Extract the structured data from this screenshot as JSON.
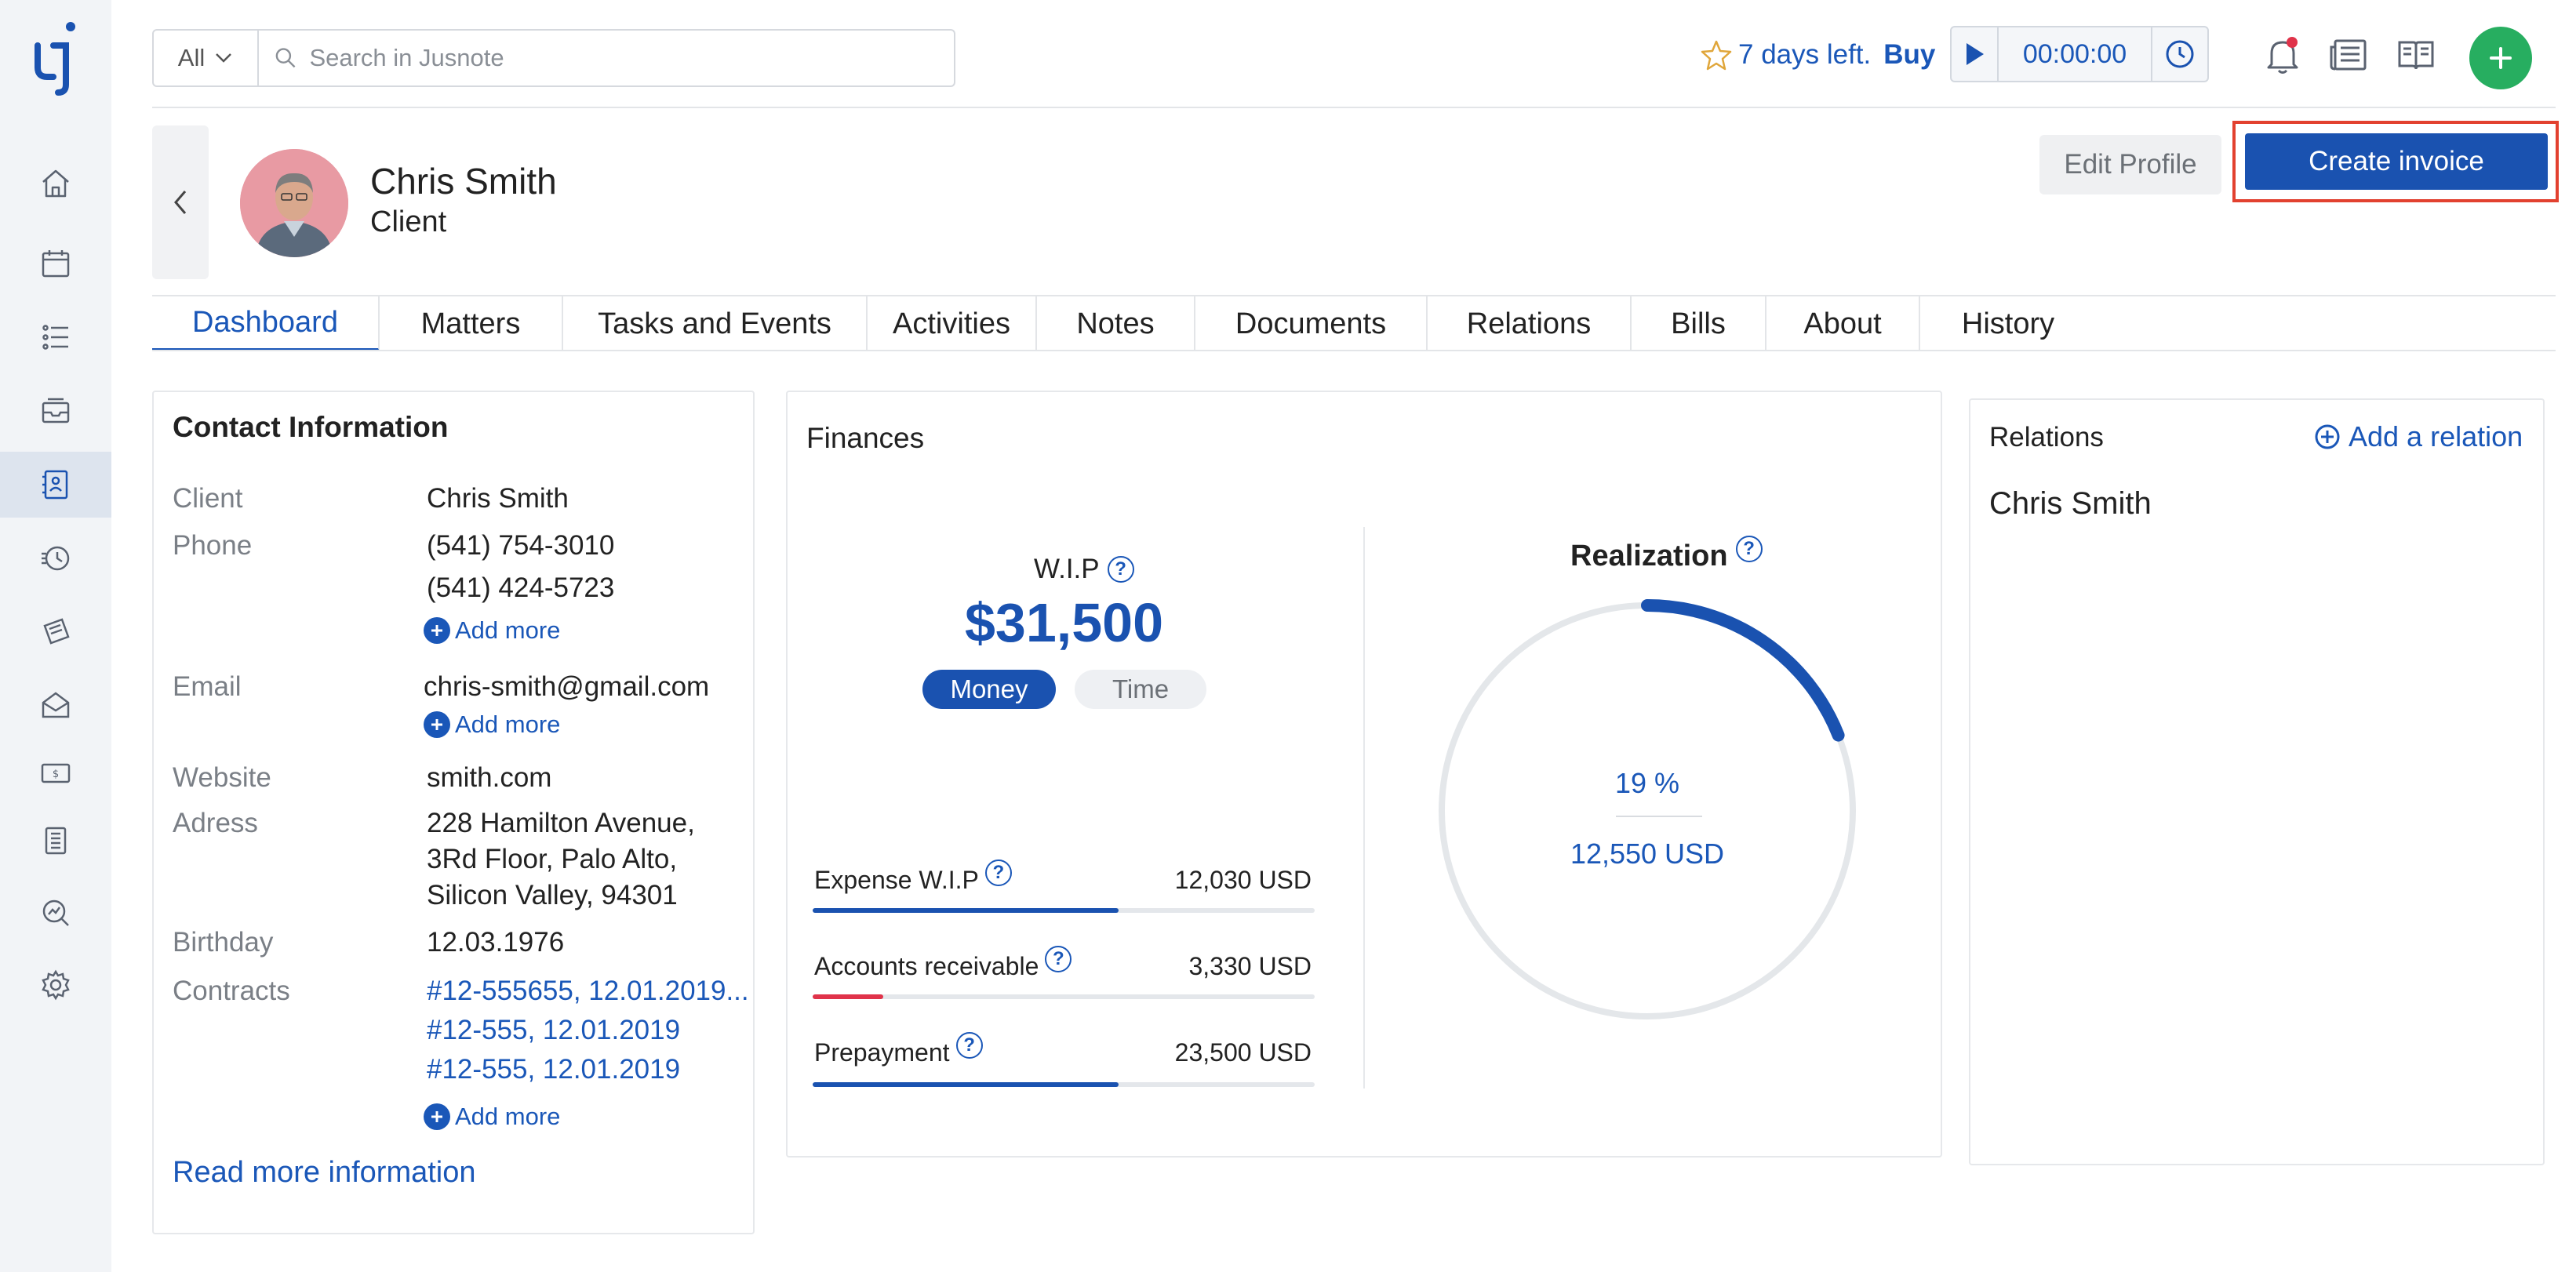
{
  "app": {
    "brand_color": "#1a52b0",
    "accent_green": "#27ae60",
    "highlight_red": "#e2412f"
  },
  "sidebar": {
    "items": [
      {
        "icon": "home-icon"
      },
      {
        "icon": "calendar-icon"
      },
      {
        "icon": "tasks-list-icon"
      },
      {
        "icon": "inbox-icon"
      },
      {
        "icon": "contacts-icon",
        "active": true
      },
      {
        "icon": "time-history-icon"
      },
      {
        "icon": "bills-icon"
      },
      {
        "icon": "mail-icon"
      },
      {
        "icon": "money-icon"
      },
      {
        "icon": "building-icon"
      },
      {
        "icon": "reports-icon"
      },
      {
        "icon": "settings-icon"
      }
    ]
  },
  "search": {
    "scope": "All",
    "placeholder": "Search in Jusnote",
    "value": ""
  },
  "trial": {
    "text": "7 days left.",
    "buy": "Buy"
  },
  "timer": {
    "time": "00:00:00"
  },
  "profile": {
    "name": "Chris Smith",
    "role": "Client",
    "edit_label": "Edit Profile",
    "create_invoice_label": "Create invoice"
  },
  "tabs": [
    {
      "label": "Dashboard",
      "active": true
    },
    {
      "label": "Matters"
    },
    {
      "label": "Tasks and Events"
    },
    {
      "label": "Activities"
    },
    {
      "label": "Notes"
    },
    {
      "label": "Documents"
    },
    {
      "label": "Relations"
    },
    {
      "label": "Bills"
    },
    {
      "label": "About"
    },
    {
      "label": "History"
    }
  ],
  "contact": {
    "title": "Contact Information",
    "client_label": "Client",
    "client_value": "Chris Smith",
    "phone_label": "Phone",
    "phones": [
      "(541) 754-3010",
      "(541) 424-5723"
    ],
    "email_label": "Email",
    "email": "chris-smith@gmail.com",
    "website_label": "Website",
    "website": "smith.com",
    "address_label": "Adress",
    "address_lines": [
      "228 Hamilton Avenue,",
      "3Rd Floor, Palo Alto,",
      "Silicon Valley, 94301"
    ],
    "birthday_label": "Birthday",
    "birthday": "12.03.1976",
    "contracts_label": "Contracts",
    "contracts": [
      "#12-555655, 12.01.2019...",
      "#12-555, 12.01.2019",
      "#12-555, 12.01.2019"
    ],
    "add_more": "Add more",
    "read_more": "Read more information"
  },
  "finances": {
    "title": "Finances",
    "wip_label": "W.I.P",
    "wip_value": "$31,500",
    "toggle_money": "Money",
    "toggle_time": "Time",
    "metrics": [
      {
        "label": "Expense W.I.P",
        "value": "12,030 USD",
        "fill": 0.61,
        "color": "#1a52b0"
      },
      {
        "label": "Accounts receivable",
        "value": "3,330 USD",
        "fill": 0.14,
        "color": "#e0334a"
      },
      {
        "label": "Prepayment",
        "value": "23,500 USD",
        "fill": 0.61,
        "color": "#1a52b0"
      }
    ],
    "realization_label": "Realization",
    "realization_pct": "19 %",
    "realization_fraction": 0.19,
    "realization_usd": "12,550 USD"
  },
  "relations": {
    "title": "Relations",
    "add_label": "Add a relation",
    "items": [
      "Chris Smith"
    ]
  }
}
